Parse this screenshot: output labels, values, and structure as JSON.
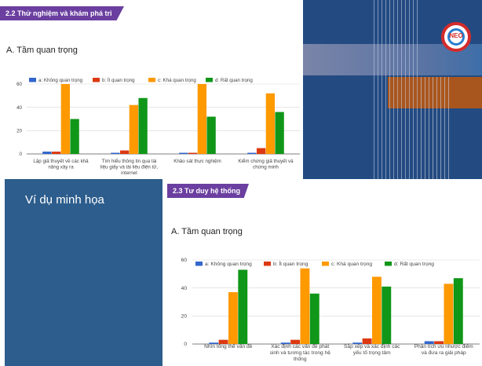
{
  "panel1": {
    "banner": "2.2 Thử nghiệm và khám phá tri thức",
    "title": "A. Tầm quan trọng"
  },
  "panel2": {
    "banner": "2.3 Tư duy hệ thống",
    "title": "A. Tầm quan trọng"
  },
  "example_label": "Ví dụ minh họa",
  "logo_text": "NEO",
  "colors": {
    "a": "#3366cc",
    "b": "#dc3912",
    "c": "#ff9900",
    "d": "#109618"
  },
  "chart_data": [
    {
      "type": "bar",
      "ylim": [
        0,
        60
      ],
      "yticks": [
        0,
        20,
        40,
        60
      ],
      "legend_position": "top",
      "series": [
        {
          "name": "a: Không quan trọng",
          "values": [
            2,
            1,
            1,
            1
          ]
        },
        {
          "name": "b: Ít quan trọng",
          "values": [
            2,
            3,
            1,
            5
          ]
        },
        {
          "name": "c: Khá quan trọng",
          "values": [
            60,
            42,
            60,
            52
          ]
        },
        {
          "name": "d: Rất quan trọng",
          "values": [
            30,
            48,
            32,
            36
          ]
        }
      ],
      "categories": [
        [
          "Lập giả thuyết về các khả",
          "năng xảy ra"
        ],
        [
          "Tìm hiểu thông tin qua tài",
          "liệu giấy và tài liệu điện tử,",
          "internet"
        ],
        [
          "Khảo sát thực nghiệm"
        ],
        [
          "Kiểm chứng giả thuyết và",
          "chứng minh"
        ]
      ]
    },
    {
      "type": "bar",
      "ylim": [
        0,
        60
      ],
      "yticks": [
        0,
        20,
        40,
        60
      ],
      "legend_position": "top",
      "series": [
        {
          "name": "a: Không quan trọng",
          "values": [
            1,
            1,
            1,
            2
          ]
        },
        {
          "name": "b: Ít quan trọng",
          "values": [
            3,
            3,
            4,
            2
          ]
        },
        {
          "name": "c: Khá quan trọng",
          "values": [
            37,
            54,
            48,
            43
          ]
        },
        {
          "name": "d: Rất quan trọng",
          "values": [
            53,
            36,
            41,
            47
          ]
        }
      ],
      "categories": [
        [
          "Nhìn tổng thể vấn đề"
        ],
        [
          "Xác định các vấn đề phát",
          "sinh và tương tác trong hệ",
          "thống"
        ],
        [
          "Sắp xếp và xác định các",
          "yếu tố trọng tâm"
        ],
        [
          "Phân tích ưu nhược điểm",
          "và đưa ra giải pháp"
        ]
      ]
    }
  ]
}
